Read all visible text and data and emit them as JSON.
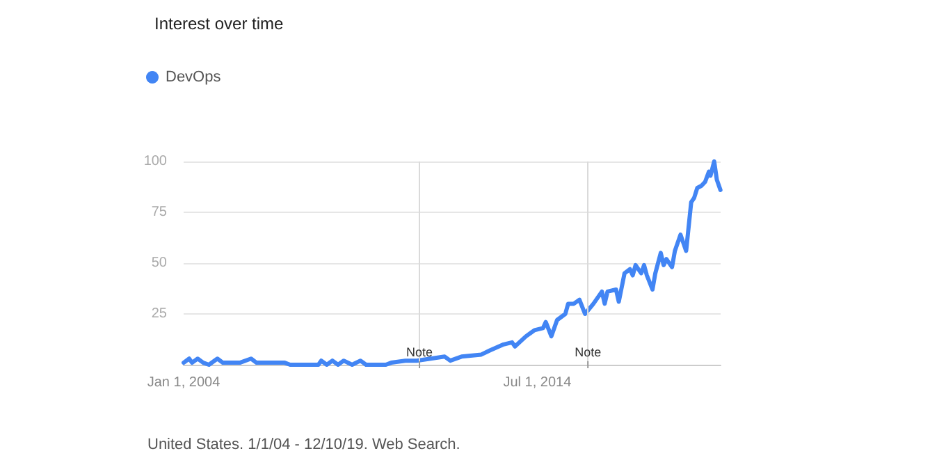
{
  "chart_data": {
    "type": "line",
    "title": "Interest over time",
    "x": [
      "2004-01",
      "2004-03",
      "2004-04",
      "2004-06",
      "2004-08",
      "2004-10",
      "2005-01",
      "2005-03",
      "2005-06",
      "2005-09",
      "2006-01",
      "2006-03",
      "2006-08",
      "2007-01",
      "2007-03",
      "2008-01",
      "2008-02",
      "2008-04",
      "2008-06",
      "2008-08",
      "2008-10",
      "2009-01",
      "2009-04",
      "2009-06",
      "2010-01",
      "2010-03",
      "2010-08",
      "2010-12",
      "2011-10",
      "2011-12",
      "2012-04",
      "2012-11",
      "2013-02",
      "2013-07",
      "2013-10",
      "2013-11",
      "2014-03",
      "2014-06",
      "2014-09",
      "2014-10",
      "2014-12",
      "2015-02",
      "2015-05",
      "2015-06",
      "2015-08",
      "2015-10",
      "2015-12",
      "2016-03",
      "2016-06",
      "2016-07",
      "2016-08",
      "2016-11",
      "2016-12",
      "2017-02",
      "2017-04",
      "2017-05",
      "2017-06",
      "2017-08",
      "2017-09",
      "2017-10",
      "2017-12",
      "2018-01",
      "2018-03",
      "2018-04",
      "2018-05",
      "2018-07",
      "2018-08",
      "2018-10",
      "2018-12",
      "2019-01-25",
      "2019-02-25",
      "2019-04-01",
      "2019-05-15",
      "2019-06-25",
      "2019-08-05",
      "2019-08-22",
      "2019-10-01",
      "2019-10-30",
      "2019-12-08"
    ],
    "series": [
      {
        "name": "DevOps",
        "color": "#4285f4",
        "values": [
          1,
          3,
          1,
          3,
          1,
          0,
          3,
          1,
          1,
          1,
          3,
          1,
          1,
          1,
          0,
          0,
          2,
          0,
          2,
          0,
          2,
          0,
          2,
          0,
          0,
          1,
          2,
          2,
          4,
          2,
          4,
          5,
          7,
          10,
          11,
          9,
          14,
          17,
          18,
          21,
          14,
          22,
          25,
          30,
          30,
          32,
          25,
          30,
          36,
          30,
          36,
          37,
          31,
          45,
          47,
          44,
          49,
          45,
          49,
          44,
          37,
          45,
          55,
          49,
          52,
          48,
          56,
          64,
          56,
          80,
          82,
          87,
          88,
          90,
          95,
          93,
          100,
          91,
          86
        ]
      }
    ],
    "xlim": [
      "2004-01-01",
      "2019-12-10"
    ],
    "xticks": [
      {
        "value": "2004-01-01",
        "label": "Jan 1, 2004"
      },
      {
        "value": "2014-07-01",
        "label": "Jul 1, 2014"
      }
    ],
    "ylim": [
      0,
      100
    ],
    "yticks": [
      25,
      50,
      75,
      100
    ],
    "ref_lines": [
      {
        "axis": "x",
        "value": "2011-01-01",
        "label": "Note"
      },
      {
        "axis": "x",
        "value": "2016-01-01",
        "label": "Note"
      }
    ],
    "annotations": [
      "United States. 1/1/04 - 12/10/19. Web Search."
    ],
    "grid": "y",
    "legend": "top left",
    "marker": "none",
    "line_style": "solid"
  }
}
